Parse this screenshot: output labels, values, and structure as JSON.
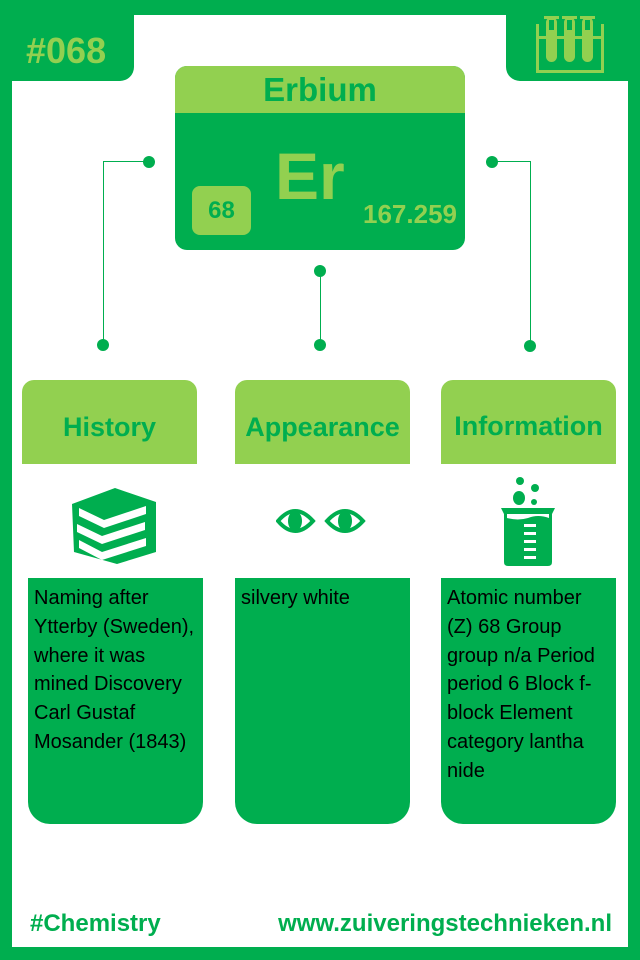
{
  "element": {
    "number_tag": "#068",
    "name": "Erbium",
    "symbol": "Er",
    "atomic_number": "68",
    "atomic_mass": "167.259"
  },
  "sections": [
    {
      "title": "History",
      "icon": "books-icon",
      "text": "Naming after Ytterby (Sweden), where it was mined Discovery Carl Gustaf Mosander (1843)"
    },
    {
      "title": "Appearance",
      "icon": "eyes-icon",
      "text": "silvery white"
    },
    {
      "title": "Information",
      "icon": "beaker-icon",
      "text": "Atomic number (Z) 68 Group group n/a Period period 6 Block f-block Element category  lantha nide"
    }
  ],
  "footer": {
    "hashtag": "#Chemistry",
    "website": "www.zuiveringstechnieken.nl"
  },
  "colors": {
    "dark_green": "#00ae4f",
    "light_green": "#92d050"
  }
}
